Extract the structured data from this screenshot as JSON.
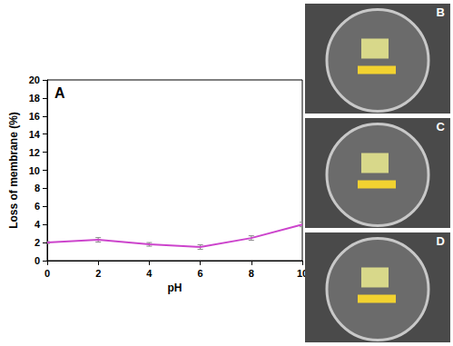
{
  "chart_data": {
    "type": "line",
    "annotation": "A",
    "x_label": "pH",
    "y_label": "Loss of membrane (%)",
    "x": [
      0,
      2,
      4,
      6,
      8,
      10
    ],
    "values": [
      2.0,
      2.3,
      1.8,
      1.5,
      2.5,
      4.0
    ],
    "errors": [
      0.1,
      0.25,
      0.2,
      0.25,
      0.25,
      0.25
    ],
    "color": "#cc44cc",
    "xlim": [
      0,
      10
    ],
    "xticks": [
      0,
      2,
      4,
      6,
      8,
      10
    ],
    "ylim": [
      0,
      20
    ],
    "yticks": [
      0,
      2,
      4,
      6,
      8,
      10,
      12,
      14,
      16,
      18,
      20
    ],
    "grid": false
  },
  "photo_panels": {
    "labels": [
      "B",
      "C",
      "D"
    ]
  }
}
